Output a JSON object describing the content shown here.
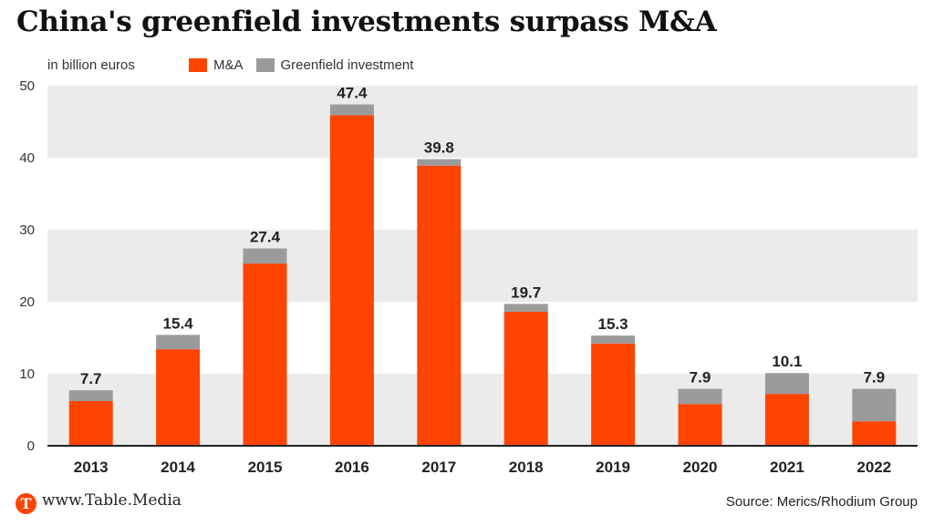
{
  "title": "China's greenfield investments surpass M&A",
  "unit_label": "in billion euros",
  "footer": {
    "logo_letter": "T",
    "site": "www.Table.Media",
    "source": "Source: Merics/Rhodium Group"
  },
  "colors": {
    "ma": "#ff4400",
    "greenfield": "#9b9b9b",
    "band": "#ebebeb",
    "axis": "#222222"
  },
  "chart_data": {
    "type": "bar",
    "stacked": true,
    "title": "China's greenfield investments surpass M&A",
    "xlabel": "",
    "ylabel": "in billion euros",
    "ylim": [
      0,
      50
    ],
    "yticks": [
      0,
      10,
      20,
      30,
      40,
      50
    ],
    "grid": "alternating horizontal bands",
    "legend_position": "top-left",
    "categories": [
      "2013",
      "2014",
      "2015",
      "2016",
      "2017",
      "2018",
      "2019",
      "2020",
      "2021",
      "2022"
    ],
    "series": [
      {
        "name": "M&A",
        "values": [
          6.2,
          13.4,
          25.3,
          45.9,
          38.9,
          18.6,
          14.2,
          5.8,
          7.2,
          3.4
        ]
      },
      {
        "name": "Greenfield investment",
        "values": [
          1.5,
          2.0,
          2.1,
          1.5,
          0.9,
          1.1,
          1.1,
          2.1,
          2.9,
          4.5
        ]
      }
    ],
    "totals": [
      "7.7",
      "15.4",
      "27.4",
      "47.4",
      "39.8",
      "19.7",
      "15.3",
      "7.9",
      "10.1",
      "7.9"
    ]
  }
}
